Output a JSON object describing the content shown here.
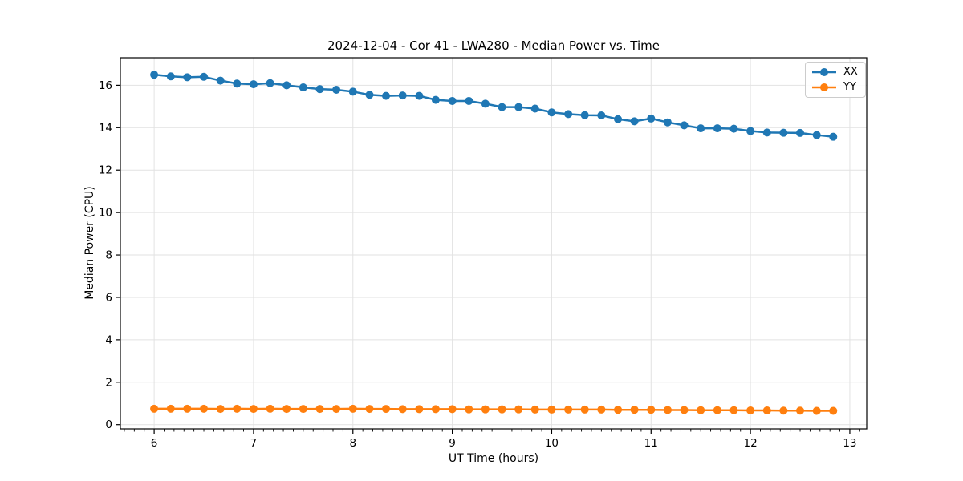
{
  "title": "2024-12-04 - Cor 41 - LWA280 - Median Power vs. Time",
  "colors": {
    "background": "#ffffff",
    "grid": "#e2e2e2",
    "spine": "#000000",
    "legend_border": "#cccccc",
    "series_xx": "#1f77b4",
    "series_yy": "#ff7f0e"
  },
  "chart_data": {
    "type": "line",
    "title": "2024-12-04 - Cor 41 - LWA280 - Median Power vs. Time",
    "xlabel": "UT Time (hours)",
    "ylabel": "Median Power (CPU)",
    "xlim": [
      5.66,
      13.17
    ],
    "ylim": [
      -0.2,
      17.3
    ],
    "x_ticks": [
      6,
      7,
      8,
      9,
      10,
      11,
      12,
      13
    ],
    "y_ticks": [
      0,
      2,
      4,
      6,
      8,
      10,
      12,
      14,
      16
    ],
    "x_minor_tick_step": 0.1,
    "grid": true,
    "legend_position": "upper right",
    "marker": "circle",
    "x": [
      6.0,
      6.167,
      6.333,
      6.5,
      6.667,
      6.833,
      7.0,
      7.167,
      7.333,
      7.5,
      7.667,
      7.833,
      8.0,
      8.167,
      8.333,
      8.5,
      8.667,
      8.833,
      9.0,
      9.167,
      9.333,
      9.5,
      9.667,
      9.833,
      10.0,
      10.167,
      10.333,
      10.5,
      10.667,
      10.833,
      11.0,
      11.167,
      11.333,
      11.5,
      11.667,
      11.833,
      12.0,
      12.167,
      12.333,
      12.5,
      12.667,
      12.833
    ],
    "series": [
      {
        "name": "XX",
        "color": "#1f77b4",
        "values": [
          16.5,
          16.42,
          16.38,
          16.4,
          16.22,
          16.08,
          16.05,
          16.1,
          16.0,
          15.9,
          15.82,
          15.79,
          15.7,
          15.55,
          15.5,
          15.52,
          15.5,
          15.31,
          15.26,
          15.26,
          15.13,
          14.97,
          14.97,
          14.9,
          14.72,
          14.64,
          14.59,
          14.58,
          14.4,
          14.3,
          14.43,
          14.25,
          14.11,
          13.97,
          13.97,
          13.95,
          13.84,
          13.77,
          13.76,
          13.75,
          13.65,
          13.57
        ]
      },
      {
        "name": "YY",
        "color": "#ff7f0e",
        "values": [
          0.75,
          0.75,
          0.75,
          0.75,
          0.74,
          0.75,
          0.74,
          0.75,
          0.74,
          0.74,
          0.74,
          0.74,
          0.75,
          0.74,
          0.74,
          0.73,
          0.73,
          0.73,
          0.73,
          0.72,
          0.72,
          0.72,
          0.72,
          0.71,
          0.71,
          0.71,
          0.71,
          0.71,
          0.7,
          0.7,
          0.7,
          0.69,
          0.69,
          0.68,
          0.68,
          0.68,
          0.67,
          0.67,
          0.66,
          0.66,
          0.65,
          0.65
        ]
      }
    ]
  }
}
